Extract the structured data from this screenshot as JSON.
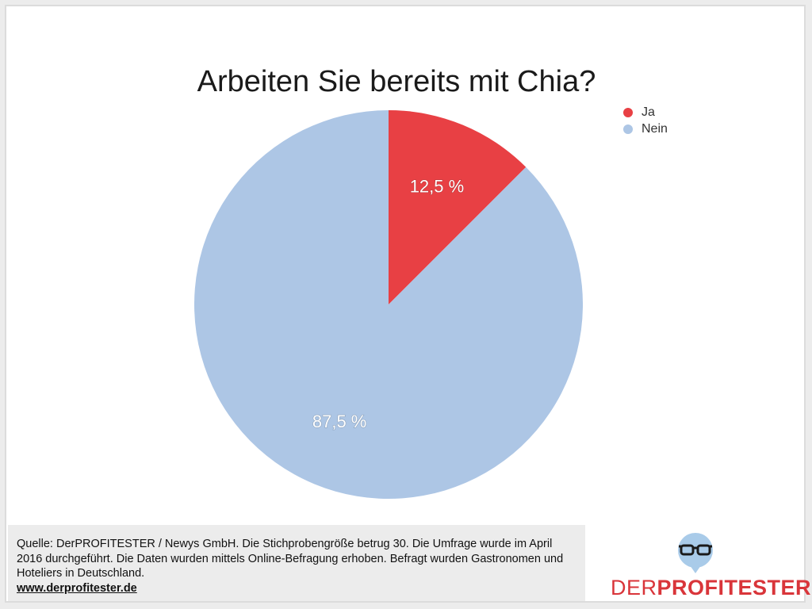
{
  "chart_data": {
    "type": "pie",
    "title": "Arbeiten Sie bereits mit Chia?",
    "categories": [
      "Ja",
      "Nein"
    ],
    "values": [
      12.5,
      87.5
    ],
    "labels": [
      "12,5 %",
      "87,5 %"
    ],
    "colors": [
      "#e84044",
      "#adc6e5"
    ],
    "legend_position": "top-right"
  },
  "footer": {
    "source_text": "Quelle: DerPROFITESTER / Newys GmbH. Die Stichprobengröße betrug 30. Die Umfrage wurde im April 2016 durchgeführt. Die Daten wurden mittels Online-Befragung erhoben. Befragt wurden Gastronomen und Hoteliers in Deutschland.",
    "link": "www.derprofitester.de"
  },
  "logo": {
    "part1": "DER",
    "part2": "PROFITESTER",
    "icon": "glasses-speech-bubble-icon",
    "brand_color": "#d9353a",
    "bubble_color": "#a9cbe9"
  }
}
